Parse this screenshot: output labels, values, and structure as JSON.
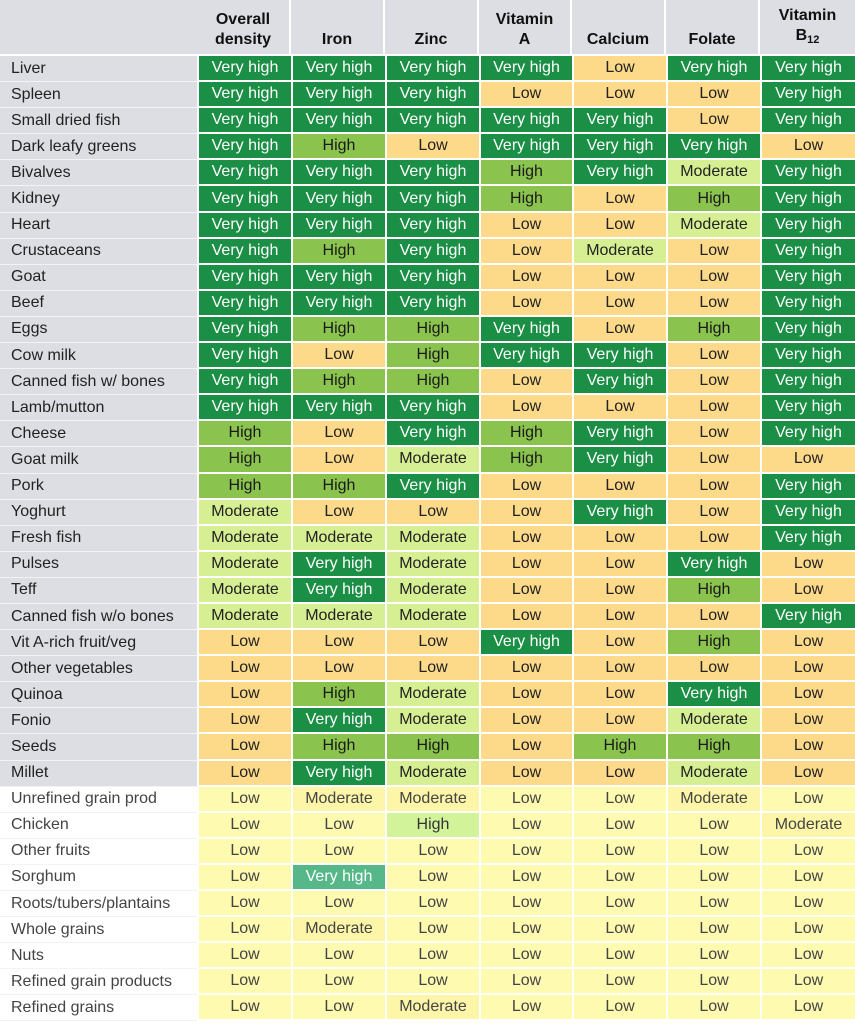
{
  "columns": [
    {
      "label": "Overall density"
    },
    {
      "label": "Iron"
    },
    {
      "label": "Zinc"
    },
    {
      "label": "Vitamin A"
    },
    {
      "label": "Calcium"
    },
    {
      "label": "Folate"
    },
    {
      "label": "Vitamin B12"
    }
  ],
  "header": {
    "overall_line1": "Overall",
    "overall_line2": "density",
    "iron": "Iron",
    "zinc": "Zinc",
    "vita_line1": "Vitamin",
    "vita_line2": "A",
    "calcium": "Calcium",
    "folate": "Folate",
    "vitb12_line1": "Vitamin",
    "vitb12_line2": "B",
    "vitb12_sub": "12"
  },
  "rows": [
    {
      "name": "Liver",
      "values": [
        "Very high",
        "Very high",
        "Very high",
        "Very high",
        "Low",
        "Very high",
        "Very high"
      ]
    },
    {
      "name": "Spleen",
      "values": [
        "Very high",
        "Very high",
        "Very high",
        "Low",
        "Low",
        "Low",
        "Very high"
      ]
    },
    {
      "name": "Small dried fish",
      "values": [
        "Very high",
        "Very high",
        "Very high",
        "Very high",
        "Very high",
        "Low",
        "Very high"
      ]
    },
    {
      "name": "Dark leafy greens",
      "values": [
        "Very high",
        "High",
        "Low",
        "Very high",
        "Very high",
        "Very high",
        "Low"
      ]
    },
    {
      "name": "Bivalves",
      "values": [
        "Very high",
        "Very high",
        "Very high",
        "High",
        "Very high",
        "Moderate",
        "Very high"
      ]
    },
    {
      "name": "Kidney",
      "values": [
        "Very high",
        "Very high",
        "Very high",
        "High",
        "Low",
        "High",
        "Very high"
      ]
    },
    {
      "name": "Heart",
      "values": [
        "Very high",
        "Very high",
        "Very high",
        "Low",
        "Low",
        "Moderate",
        "Very high"
      ]
    },
    {
      "name": "Crustaceans",
      "values": [
        "Very high",
        "High",
        "Very high",
        "Low",
        "Moderate",
        "Low",
        "Very high"
      ]
    },
    {
      "name": "Goat",
      "values": [
        "Very high",
        "Very high",
        "Very high",
        "Low",
        "Low",
        "Low",
        "Very high"
      ]
    },
    {
      "name": "Beef",
      "values": [
        "Very high",
        "Very high",
        "Very high",
        "Low",
        "Low",
        "Low",
        "Very high"
      ]
    },
    {
      "name": "Eggs",
      "values": [
        "Very high",
        "High",
        "High",
        "Very high",
        "Low",
        "High",
        "Very high"
      ]
    },
    {
      "name": "Cow milk",
      "values": [
        "Very high",
        "Low",
        "High",
        "Very high",
        "Very high",
        "Low",
        "Very high"
      ]
    },
    {
      "name": "Canned fish w/ bones",
      "values": [
        "Very high",
        "High",
        "High",
        "Low",
        "Very high",
        "Low",
        "Very high"
      ]
    },
    {
      "name": "Lamb/mutton",
      "values": [
        "Very high",
        "Very high",
        "Very high",
        "Low",
        "Low",
        "Low",
        "Very high"
      ]
    },
    {
      "name": "Cheese",
      "values": [
        "High",
        "Low",
        "Very high",
        "High",
        "Very high",
        "Low",
        "Very high"
      ]
    },
    {
      "name": "Goat milk",
      "values": [
        "High",
        "Low",
        "Moderate",
        "High",
        "Very high",
        "Low",
        "Low"
      ]
    },
    {
      "name": "Pork",
      "values": [
        "High",
        "High",
        "Very high",
        "Low",
        "Low",
        "Low",
        "Very high"
      ]
    },
    {
      "name": "Yoghurt",
      "values": [
        "Moderate",
        "Low",
        "Low",
        "Low",
        "Very high",
        "Low",
        "Very high"
      ]
    },
    {
      "name": "Fresh fish",
      "values": [
        "Moderate",
        "Moderate",
        "Moderate",
        "Low",
        "Low",
        "Low",
        "Very high"
      ]
    },
    {
      "name": "Pulses",
      "values": [
        "Moderate",
        "Very high",
        "Moderate",
        "Low",
        "Low",
        "Very high",
        "Low"
      ]
    },
    {
      "name": "Teff",
      "values": [
        "Moderate",
        "Very high",
        "Moderate",
        "Low",
        "Low",
        "High",
        "Low"
      ]
    },
    {
      "name": "Canned fish w/o bones",
      "values": [
        "Moderate",
        "Moderate",
        "Moderate",
        "Low",
        "Low",
        "Low",
        "Very high"
      ]
    },
    {
      "name": "Vit A-rich fruit/veg",
      "values": [
        "Low",
        "Low",
        "Low",
        "Very high",
        "Low",
        "High",
        "Low"
      ]
    },
    {
      "name": "Other vegetables",
      "values": [
        "Low",
        "Low",
        "Low",
        "Low",
        "Low",
        "Low",
        "Low"
      ]
    },
    {
      "name": "Quinoa",
      "values": [
        "Low",
        "High",
        "Moderate",
        "Low",
        "Low",
        "Very high",
        "Low"
      ]
    },
    {
      "name": "Fonio",
      "values": [
        "Low",
        "Very high",
        "Moderate",
        "Low",
        "Low",
        "Moderate",
        "Low"
      ]
    },
    {
      "name": "Seeds",
      "values": [
        "Low",
        "High",
        "High",
        "Low",
        "High",
        "High",
        "Low"
      ]
    },
    {
      "name": "Millet",
      "values": [
        "Low",
        "Very high",
        "Moderate",
        "Low",
        "Low",
        "Moderate",
        "Low"
      ]
    },
    {
      "name": "Unrefined grain prod",
      "values": [
        "Low",
        "Moderate",
        "Moderate",
        "Low",
        "Low",
        "Moderate",
        "Low"
      ],
      "faded": true
    },
    {
      "name": "Chicken",
      "values": [
        "Low",
        "Low",
        "High",
        "Low",
        "Low",
        "Low",
        "Moderate"
      ],
      "faded": true
    },
    {
      "name": "Other fruits",
      "values": [
        "Low",
        "Low",
        "Low",
        "Low",
        "Low",
        "Low",
        "Low"
      ],
      "faded": true
    },
    {
      "name": "Sorghum",
      "values": [
        "Low",
        "Very high",
        "Low",
        "Low",
        "Low",
        "Low",
        "Low"
      ],
      "faded": true
    },
    {
      "name": "Roots/tubers/plantains",
      "values": [
        "Low",
        "Low",
        "Low",
        "Low",
        "Low",
        "Low",
        "Low"
      ],
      "faded": true
    },
    {
      "name": "Whole grains",
      "values": [
        "Low",
        "Moderate",
        "Low",
        "Low",
        "Low",
        "Low",
        "Low"
      ],
      "faded": true
    },
    {
      "name": "Nuts",
      "values": [
        "Low",
        "Low",
        "Low",
        "Low",
        "Low",
        "Low",
        "Low"
      ],
      "faded": true
    },
    {
      "name": "Refined grain products",
      "values": [
        "Low",
        "Low",
        "Low",
        "Low",
        "Low",
        "Low",
        "Low"
      ],
      "faded": true
    },
    {
      "name": "Refined grains",
      "values": [
        "Low",
        "Low",
        "Moderate",
        "Low",
        "Low",
        "Low",
        "Low"
      ],
      "faded": true
    }
  ],
  "legend_colors": {
    "Very high": "#1b8f45",
    "High": "#8bc34f",
    "Moderate": "#d6ef93",
    "Low": "#fdd98a"
  }
}
